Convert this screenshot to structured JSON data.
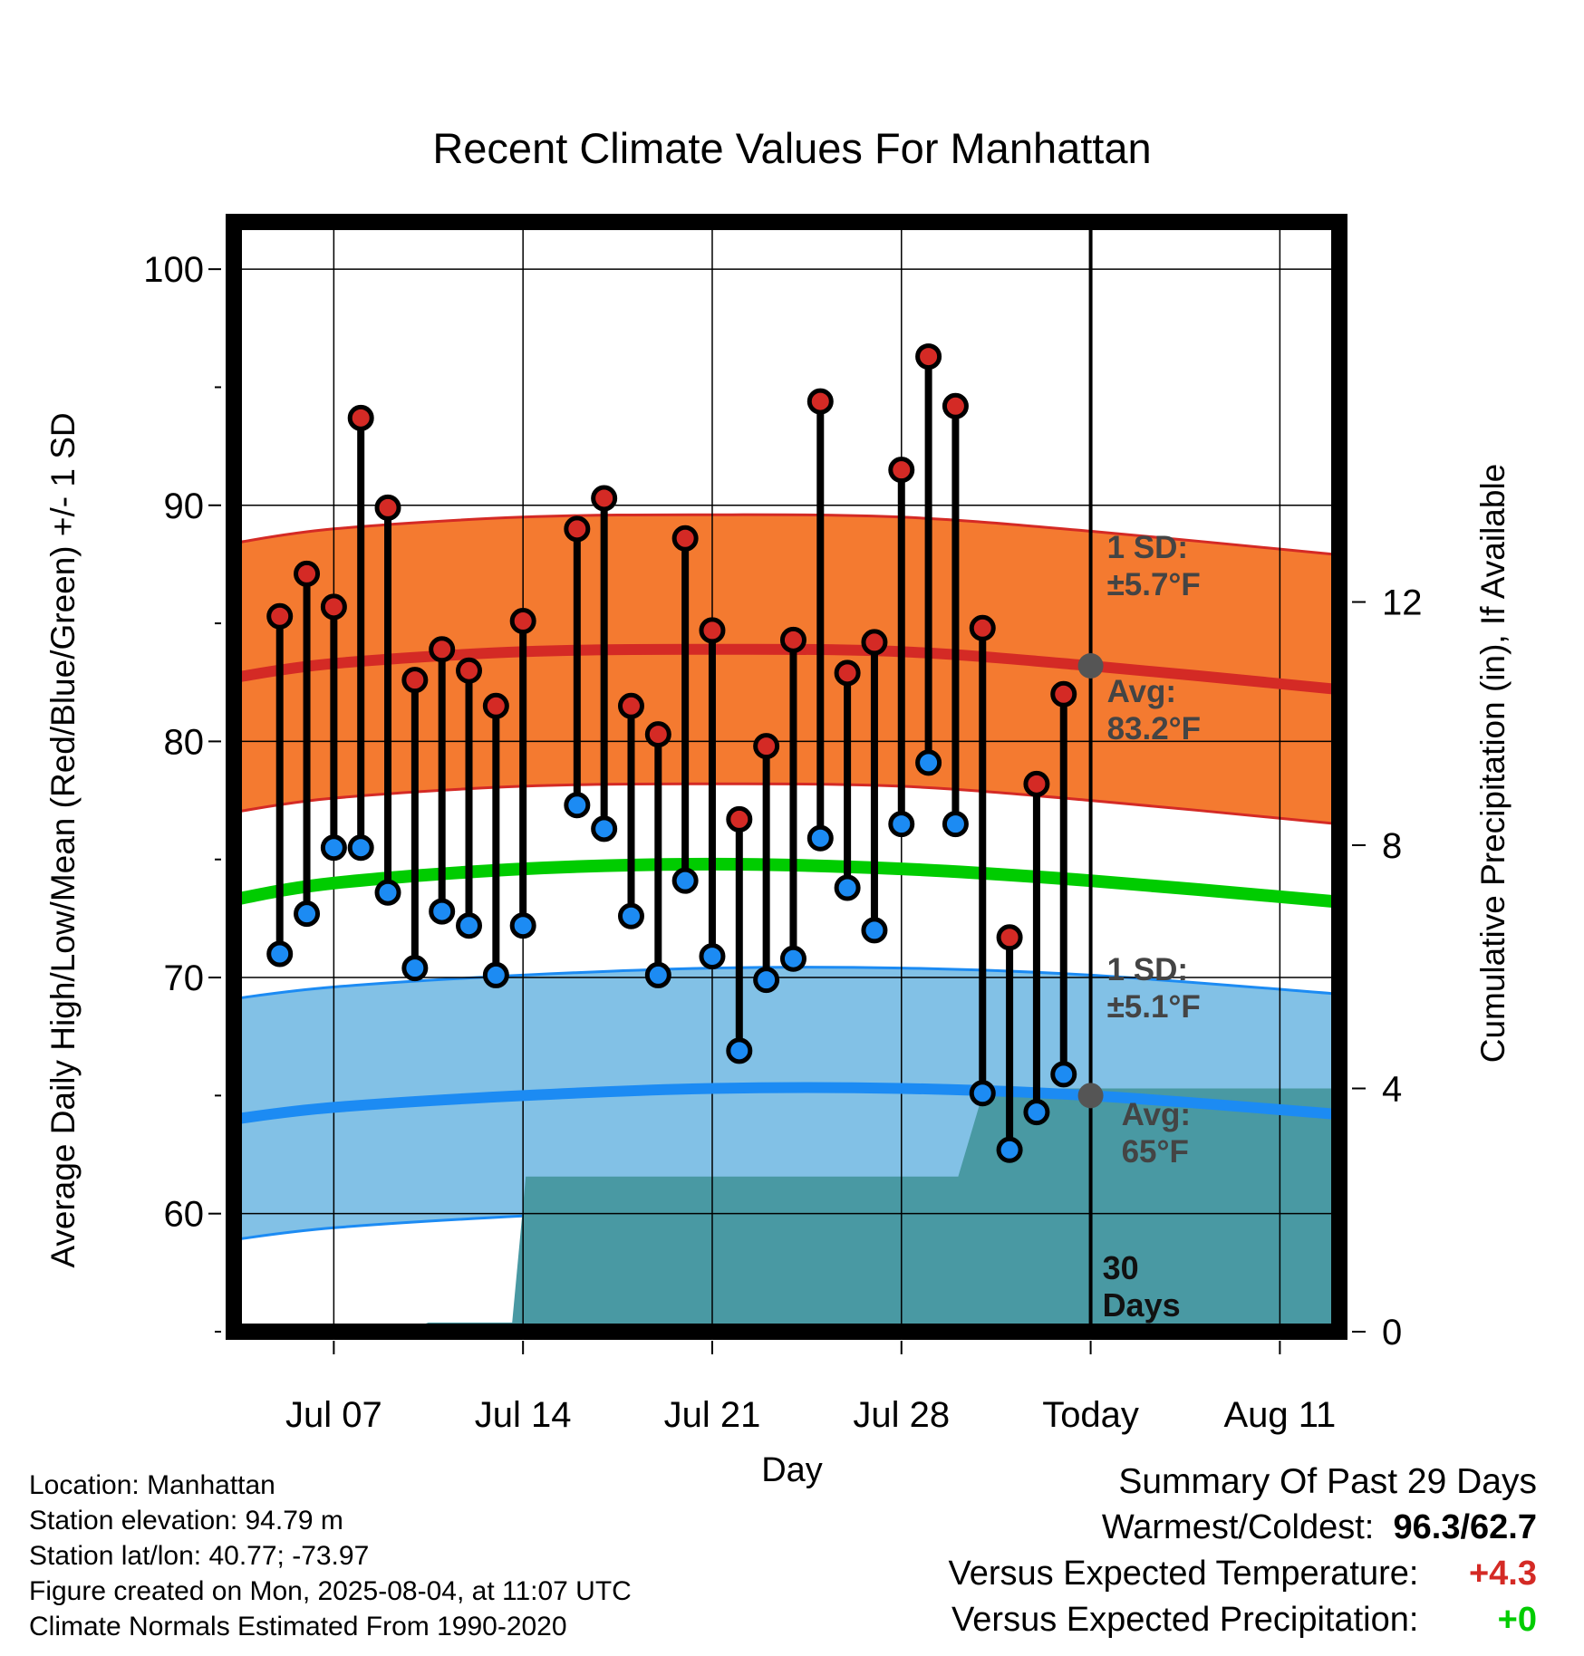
{
  "chart_data": {
    "type": "scatter",
    "title": "Recent Climate Values For Manhattan",
    "xlabel": "Day",
    "ylabel_left": "Average Daily High/Low/Mean (Red/Blue/Green) +/- 1 SD",
    "ylabel_right": "Cumulative Precipitation (in), If Available",
    "x_tick_labels": [
      "Jul 07",
      "Jul 14",
      "Jul 21",
      "Jul 28",
      "Today",
      "Aug 11"
    ],
    "x_tick_days": [
      7,
      14,
      21,
      28,
      35,
      42
    ],
    "xlim": [
      3.3,
      44.2
    ],
    "ylim_left": [
      55,
      102
    ],
    "yticks_left": [
      60,
      70,
      80,
      90,
      100
    ],
    "ylim_right": [
      0,
      18.25
    ],
    "yticks_right": [
      0,
      4,
      8,
      12
    ],
    "today_day": 35,
    "days": [
      5,
      6,
      7,
      8,
      9,
      10,
      11,
      12,
      13,
      14,
      16,
      17,
      18,
      19,
      20,
      21,
      22,
      23,
      24,
      25,
      26,
      27,
      28,
      29,
      30,
      31,
      32,
      33,
      34
    ],
    "highs": [
      85.3,
      87.1,
      85.7,
      93.7,
      89.9,
      82.6,
      83.9,
      83.0,
      81.5,
      85.1,
      89.0,
      90.3,
      81.5,
      80.3,
      88.6,
      84.7,
      76.7,
      79.8,
      84.3,
      94.4,
      82.9,
      84.2,
      91.5,
      96.3,
      94.2,
      84.8,
      71.7,
      78.2,
      82.0
    ],
    "lows": [
      71.0,
      72.7,
      75.5,
      75.5,
      73.6,
      70.4,
      72.8,
      72.2,
      70.1,
      72.2,
      77.3,
      76.3,
      72.6,
      70.1,
      74.1,
      70.9,
      66.9,
      69.9,
      70.8,
      75.9,
      73.8,
      72.0,
      76.5,
      79.1,
      76.5,
      65.1,
      62.7,
      64.3,
      65.9
    ],
    "normal_days": [
      3.3,
      7,
      14,
      21,
      28,
      35,
      44.2
    ],
    "normal_high": [
      82.7,
      83.3,
      83.8,
      83.9,
      83.8,
      83.2,
      82.2
    ],
    "high_sd": 5.7,
    "normal_mean": [
      73.3,
      74.0,
      74.6,
      74.8,
      74.6,
      74.1,
      73.2
    ],
    "normal_low": [
      64.0,
      64.5,
      65.0,
      65.3,
      65.3,
      65.0,
      64.2
    ],
    "low_sd": 5.1,
    "precip_cumulative": [
      [
        3.3,
        0
      ],
      [
        9.6,
        0
      ],
      [
        10.5,
        0.15
      ],
      [
        13.6,
        0.15
      ],
      [
        14.1,
        2.55
      ],
      [
        30.1,
        2.55
      ],
      [
        30.9,
        3.75
      ],
      [
        31.8,
        4.0
      ],
      [
        44.2,
        4.0
      ]
    ],
    "annotations": {
      "high_sd_label": "1 SD:",
      "high_sd_value": "±5.7°F",
      "high_avg_label": "Avg:",
      "high_avg_value": "83.2°F",
      "low_sd_label": "1 SD:",
      "low_sd_value": "±5.1°F",
      "low_avg_label": "Avg:",
      "low_avg_value": "65°F",
      "window_line1": "30",
      "window_line2": "Days"
    },
    "colors": {
      "high_band": "#f47a30",
      "high_edge": "#d42a25",
      "normal_high": "#d42a25",
      "low_band": "#82c1e6",
      "low_edge": "#1c8bf3",
      "normal_low": "#1c8bf3",
      "normal_mean": "#00cc00",
      "high_dot": "#d42a25",
      "low_dot": "#1c8bf3",
      "precip": "#4999a3",
      "today_marker": "#555555"
    }
  },
  "info": {
    "location": "Location: Manhattan",
    "elevation": "Station elevation: 94.79 m",
    "latlon": "Station lat/lon: 40.77; -73.97",
    "created": "Figure created on Mon, 2025-08-04, at 11:07 UTC",
    "normals": "Climate Normals Estimated From 1990-2020"
  },
  "summary": {
    "title": "Summary Of Past 29 Days",
    "warm_cold_label": "Warmest/Coldest:",
    "warmest": "96.3",
    "slash": "/",
    "coldest": "62.7",
    "temp_label": "Versus Expected Temperature:",
    "temp_value": "+4.3",
    "temp_color": "#d42a25",
    "precip_label": "Versus Expected Precipitation:",
    "precip_value": "+0",
    "precip_color": "#00cc00"
  }
}
